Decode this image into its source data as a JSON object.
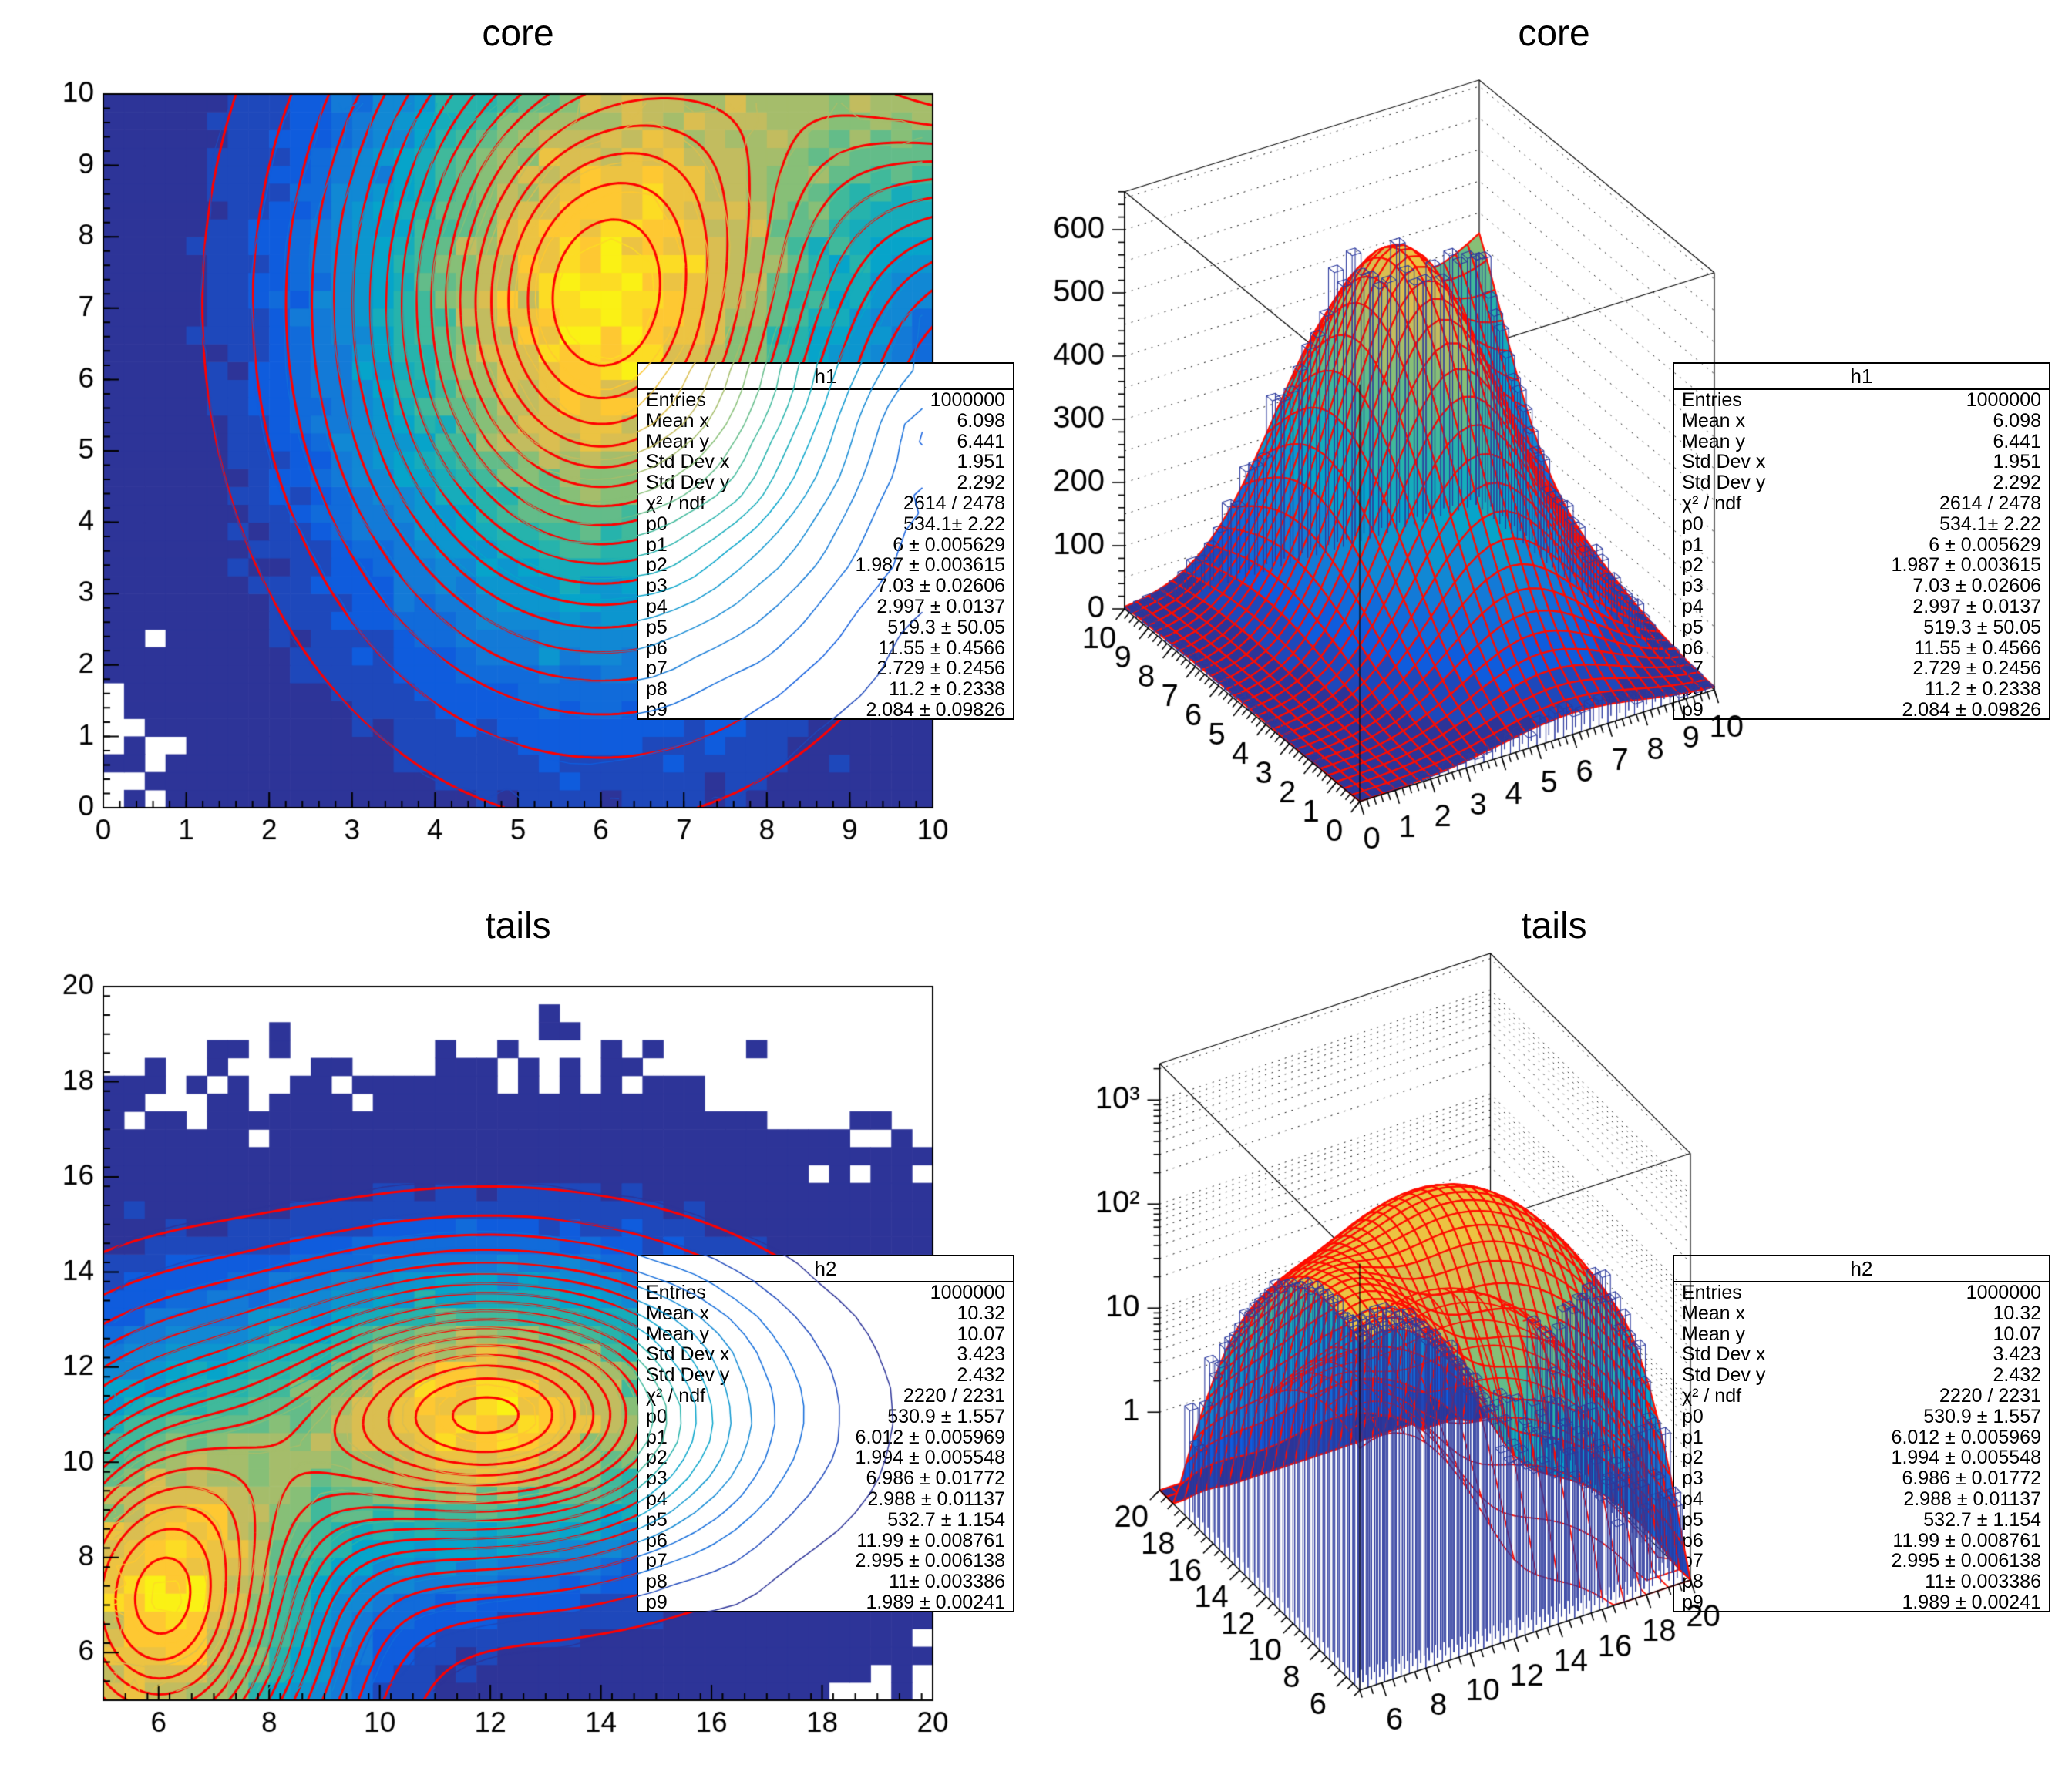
{
  "page": {
    "background": "#ffffff"
  },
  "palette": {
    "stops": [
      [
        53,
        42,
        135
      ],
      [
        15,
        92,
        221
      ],
      [
        20,
        129,
        214
      ],
      [
        6,
        164,
        202
      ],
      [
        46,
        183,
        164
      ],
      [
        135,
        191,
        119
      ],
      [
        209,
        187,
        89
      ],
      [
        254,
        200,
        50
      ],
      [
        249,
        251,
        14
      ]
    ],
    "fit_contour_red": "#ff0000",
    "surface_mesh_red": "#ff0c00",
    "data_bar_blue": "#2c3a9e",
    "axis_black": "#000000",
    "empty_bin": "#ffffff"
  },
  "chart_data": [
    {
      "id": "core-2d",
      "type": "heatmap",
      "title": "core",
      "hist_name": "h1",
      "x": {
        "min": 0,
        "max": 10,
        "tick_step": 1,
        "minor_step": 0.2,
        "labels": [
          "0",
          "1",
          "2",
          "3",
          "4",
          "5",
          "6",
          "7",
          "8",
          "9",
          "10"
        ]
      },
      "y": {
        "min": 0,
        "max": 10,
        "tick_step": 1,
        "minor_step": 0.2,
        "labels": [
          "0",
          "1",
          "2",
          "3",
          "4",
          "5",
          "6",
          "7",
          "8",
          "9",
          "10"
        ]
      },
      "n_bins": 40,
      "n_contour_levels": 20,
      "fit": {
        "model": "p0*exp(-0.5*((x-p1)/p2)^2-0.5*((y-p3)/p4)^2)+p5*exp(-0.5*((x-p6)/p7)^2-0.5*((y-p8)/p9)^2)",
        "params": [
          534.1,
          6,
          1.987,
          7.03,
          2.997,
          519.3,
          11.55,
          2.729,
          11.2,
          2.084
        ]
      },
      "has_red_fit_contours": true,
      "stats": {
        "name": "h1",
        "rows": [
          [
            "Entries",
            "1000000"
          ],
          [
            "Mean x",
            "6.098"
          ],
          [
            "Mean y",
            "6.441"
          ],
          [
            "Std Dev x",
            "1.951"
          ],
          [
            "Std Dev y",
            "2.292"
          ],
          [
            "χ² / ndf",
            "2614 / 2478"
          ],
          [
            "p0",
            "534.1± 2.22"
          ],
          [
            "p1",
            "6 ± 0.005629"
          ],
          [
            "p2",
            "1.987 ± 0.003615"
          ],
          [
            "p3",
            "7.03 ± 0.02606"
          ],
          [
            "p4",
            "2.997 ± 0.0137"
          ],
          [
            "p5",
            "519.3 ± 50.05"
          ],
          [
            "p6",
            "11.55 ± 0.4566"
          ],
          [
            "p7",
            "2.729 ± 0.2456"
          ],
          [
            "p8",
            "11.2 ± 0.2338"
          ],
          [
            "p9",
            "2.084 ± 0.09826"
          ]
        ]
      }
    },
    {
      "id": "core-3d",
      "type": "surface3d",
      "title": "core",
      "hist_name": "h1",
      "x": {
        "min": 0,
        "max": 10,
        "tick_step": 1,
        "minor_step": 0.2,
        "labels": [
          "0",
          "1",
          "2",
          "3",
          "4",
          "5",
          "6",
          "7",
          "8",
          "9",
          "10"
        ]
      },
      "y": {
        "min": 0,
        "max": 10,
        "tick_step": 1,
        "minor_step": 0.2,
        "labels": [
          "0",
          "1",
          "2",
          "3",
          "4",
          "5",
          "6",
          "7",
          "8",
          "9",
          "10"
        ]
      },
      "z": {
        "log": false,
        "min": 0,
        "max": 660,
        "tick_step": 100,
        "labels": [
          "0",
          "100",
          "200",
          "300",
          "400",
          "500",
          "600"
        ]
      },
      "n_bins": 40,
      "fit": {
        "model": "p0*exp(-0.5*((x-p1)/p2)^2-0.5*((y-p3)/p4)^2)+p5*exp(-0.5*((x-p6)/p7)^2-0.5*((y-p8)/p9)^2)",
        "params": [
          534.1,
          6,
          1.987,
          7.03,
          2.997,
          519.3,
          11.55,
          2.729,
          11.2,
          2.084
        ]
      },
      "stats": {
        "name": "h1",
        "rows": [
          [
            "Entries",
            "1000000"
          ],
          [
            "Mean x",
            "6.098"
          ],
          [
            "Mean y",
            "6.441"
          ],
          [
            "Std Dev x",
            "1.951"
          ],
          [
            "Std Dev y",
            "2.292"
          ],
          [
            "χ² / ndf",
            "2614 / 2478"
          ],
          [
            "p0",
            "534.1± 2.22"
          ],
          [
            "p1",
            "6 ± 0.005629"
          ],
          [
            "p2",
            "1.987 ± 0.003615"
          ],
          [
            "p3",
            "7.03 ± 0.02606"
          ],
          [
            "p4",
            "2.997 ± 0.0137"
          ],
          [
            "p5",
            "519.3 ± 50.05"
          ],
          [
            "p6",
            "11.55 ± 0.4566"
          ],
          [
            "p7",
            "2.729 ± 0.2456"
          ],
          [
            "p8",
            "11.2 ± 0.2338"
          ],
          [
            "p9",
            "2.084 ± 0.09826"
          ]
        ]
      }
    },
    {
      "id": "tails-2d",
      "type": "heatmap",
      "title": "tails",
      "hist_name": "h2",
      "x": {
        "min": 5,
        "max": 20,
        "tick_step": 2,
        "minor_step": 0.4,
        "labels": [
          "6",
          "8",
          "10",
          "12",
          "14",
          "16",
          "18",
          "20"
        ],
        "first_label_at": 6
      },
      "y": {
        "min": 5,
        "max": 20,
        "tick_step": 2,
        "minor_step": 0.4,
        "labels": [
          "6",
          "8",
          "10",
          "12",
          "14",
          "16",
          "18",
          "20"
        ],
        "first_label_at": 6
      },
      "n_bins": 40,
      "n_contour_levels": 20,
      "fit": {
        "model": "p0*exp(-0.5*((x-p1)/p2)^2-0.5*((y-p3)/p4)^2)+p5*exp(-0.5*((x-p6)/p7)^2-0.5*((y-p8)/p9)^2)",
        "params": [
          530.9,
          6.012,
          1.994,
          6.986,
          2.988,
          532.7,
          11.99,
          2.995,
          11,
          1.989
        ]
      },
      "has_red_fit_contours": true,
      "stats": {
        "name": "h2",
        "rows": [
          [
            "Entries",
            "1000000"
          ],
          [
            "Mean x",
            "10.32"
          ],
          [
            "Mean y",
            "10.07"
          ],
          [
            "Std Dev x",
            "3.423"
          ],
          [
            "Std Dev y",
            "2.432"
          ],
          [
            "χ² / ndf",
            "2220 / 2231"
          ],
          [
            "p0",
            "530.9 ± 1.557"
          ],
          [
            "p1",
            "6.012 ± 0.005969"
          ],
          [
            "p2",
            "1.994 ± 0.005548"
          ],
          [
            "p3",
            "6.986 ± 0.01772"
          ],
          [
            "p4",
            "2.988 ± 0.01137"
          ],
          [
            "p5",
            "532.7 ± 1.154"
          ],
          [
            "p6",
            "11.99 ± 0.008761"
          ],
          [
            "p7",
            "2.995 ± 0.006138"
          ],
          [
            "p8",
            "11± 0.003386"
          ],
          [
            "p9",
            "1.989 ± 0.00241"
          ]
        ]
      }
    },
    {
      "id": "tails-3d",
      "type": "surface3d",
      "title": "tails",
      "hist_name": "h2",
      "x": {
        "min": 5,
        "max": 20,
        "tick_step": 2,
        "minor_step": 0.5,
        "labels": [
          "6",
          "8",
          "10",
          "12",
          "14",
          "16",
          "18",
          "20"
        ],
        "first_label_at": 6
      },
      "y": {
        "min": 5,
        "max": 20,
        "tick_step": 2,
        "minor_step": 0.5,
        "labels": [
          "6",
          "8",
          "10",
          "12",
          "14",
          "16",
          "18",
          "20"
        ],
        "first_label_at": 6
      },
      "z": {
        "log": true,
        "decade_labels": [
          "1",
          "10",
          "10²",
          "10³"
        ],
        "decades": [
          0,
          1,
          2,
          3
        ]
      },
      "n_bins": 40,
      "fit": {
        "model": "p0*exp(-0.5*((x-p1)/p2)^2-0.5*((y-p3)/p4)^2)+p5*exp(-0.5*((x-p6)/p7)^2-0.5*((y-p8)/p9)^2)",
        "params": [
          530.9,
          6.012,
          1.994,
          6.986,
          2.988,
          532.7,
          11.99,
          2.995,
          11,
          1.989
        ]
      },
      "stats": {
        "name": "h2",
        "rows": [
          [
            "Entries",
            "1000000"
          ],
          [
            "Mean x",
            "10.32"
          ],
          [
            "Mean y",
            "10.07"
          ],
          [
            "Std Dev x",
            "3.423"
          ],
          [
            "Std Dev y",
            "2.432"
          ],
          [
            "χ² / ndf",
            "2220 / 2231"
          ],
          [
            "p0",
            "530.9 ± 1.557"
          ],
          [
            "p1",
            "6.012 ± 0.005969"
          ],
          [
            "p2",
            "1.994 ± 0.005548"
          ],
          [
            "p3",
            "6.986 ± 0.01772"
          ],
          [
            "p4",
            "2.988 ± 0.01137"
          ],
          [
            "p5",
            "532.7 ± 1.154"
          ],
          [
            "p6",
            "11.99 ± 0.008761"
          ],
          [
            "p7",
            "2.995 ± 0.006138"
          ],
          [
            "p8",
            "11± 0.003386"
          ],
          [
            "p9",
            "1.989 ± 0.00241"
          ]
        ]
      }
    }
  ]
}
